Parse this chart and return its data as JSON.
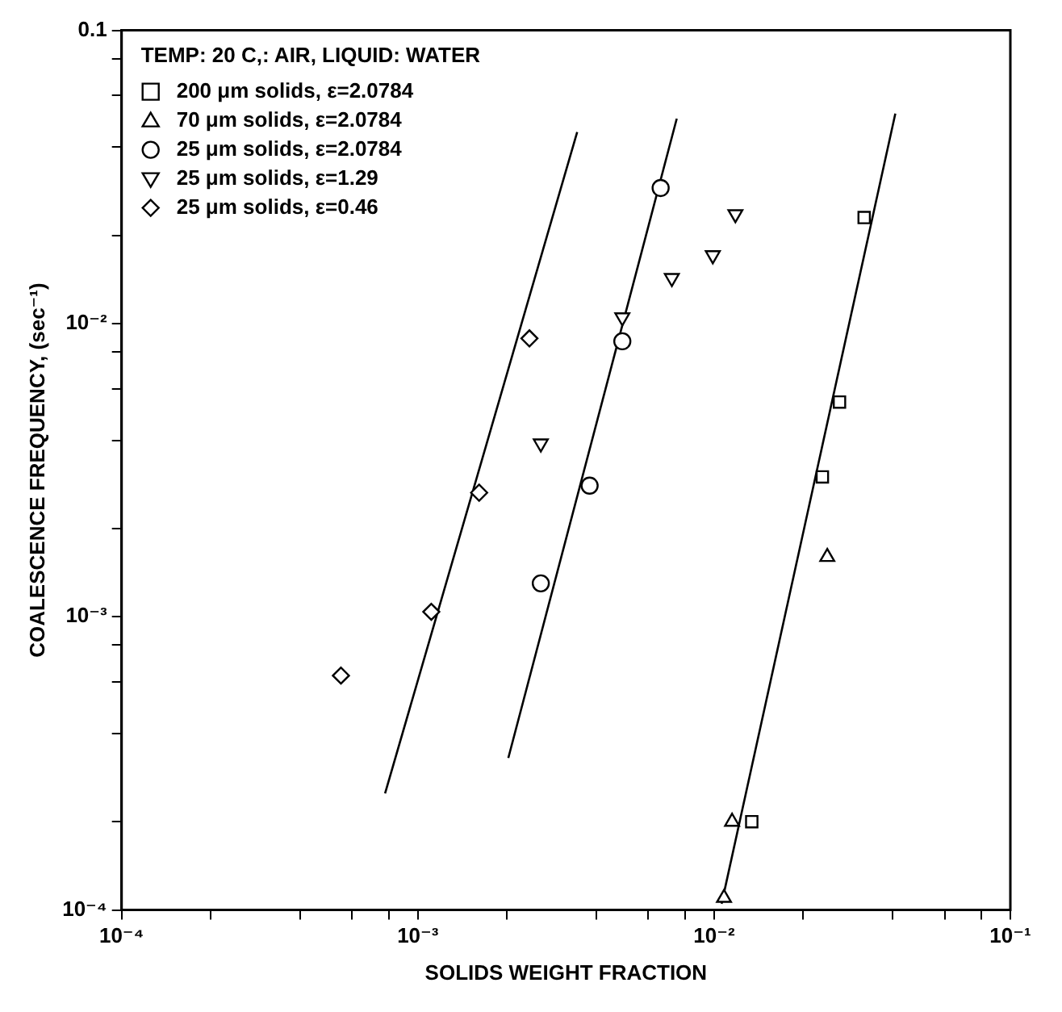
{
  "chart_data": {
    "type": "scatter",
    "xlabel": "SOLIDS WEIGHT FRACTION",
    "ylabel": "COALESCENCE FREQUENCY, (sec⁻¹)",
    "legend_title": "TEMP: 20 C,: AIR, LIQUID: WATER",
    "log": "xy",
    "grid": false,
    "legend": "top left",
    "xlim": [
      0.0001,
      0.1
    ],
    "ylim": [
      0.0001,
      0.1
    ],
    "xticks": [
      {
        "value": 0.0001,
        "label": "10⁻⁴"
      },
      {
        "value": 0.0002,
        "label": null
      },
      {
        "value": 0.0004,
        "label": null
      },
      {
        "value": 0.0006,
        "label": null
      },
      {
        "value": 0.0008,
        "label": null
      },
      {
        "value": 0.001,
        "label": "10⁻³"
      },
      {
        "value": 0.002,
        "label": null
      },
      {
        "value": 0.004,
        "label": null
      },
      {
        "value": 0.006,
        "label": null
      },
      {
        "value": 0.008,
        "label": null
      },
      {
        "value": 0.01,
        "label": "10⁻²"
      },
      {
        "value": 0.02,
        "label": null
      },
      {
        "value": 0.04,
        "label": null
      },
      {
        "value": 0.06,
        "label": null
      },
      {
        "value": 0.08,
        "label": null
      },
      {
        "value": 0.1,
        "label": "10⁻¹"
      }
    ],
    "yticks": [
      {
        "value": 0.0001,
        "label": "10⁻⁴"
      },
      {
        "value": 0.0002,
        "label": null
      },
      {
        "value": 0.0004,
        "label": null
      },
      {
        "value": 0.0006,
        "label": null
      },
      {
        "value": 0.0008,
        "label": null
      },
      {
        "value": 0.001,
        "label": "10⁻³"
      },
      {
        "value": 0.002,
        "label": null
      },
      {
        "value": 0.004,
        "label": null
      },
      {
        "value": 0.006,
        "label": null
      },
      {
        "value": 0.008,
        "label": null
      },
      {
        "value": 0.01,
        "label": "10⁻²"
      },
      {
        "value": 0.02,
        "label": null
      },
      {
        "value": 0.04,
        "label": null
      },
      {
        "value": 0.06,
        "label": null
      },
      {
        "value": 0.08,
        "label": null
      },
      0.1
    ],
    "series": [
      {
        "name": "200 μm solids, ε=2.0784",
        "color": "#000000",
        "marker": "square",
        "x": [
          0.0134,
          0.0232,
          0.0265,
          0.0321
        ],
        "values": [
          0.0002,
          0.003,
          0.0054,
          0.023
        ]
      },
      {
        "name": "70 μm solids, ε=2.0784",
        "color": "#000000",
        "marker": "triangle",
        "x": [
          0.0108,
          0.0115,
          0.0241
        ],
        "values": [
          0.00011,
          0.0002,
          0.0016
        ]
      },
      {
        "name": "25 μm solids, ε=2.0784",
        "color": "#000000",
        "marker": "circle",
        "x": [
          0.0026,
          0.0038,
          0.0049,
          0.0066
        ],
        "values": [
          0.0013,
          0.0028,
          0.0087,
          0.029
        ]
      },
      {
        "name": "25 μm solids, ε=1.29",
        "color": "#000000",
        "marker": "triangle-down",
        "x": [
          0.0026,
          0.0049,
          0.0072,
          0.0099,
          0.0118
        ],
        "values": [
          0.0039,
          0.0105,
          0.0143,
          0.0171,
          0.0236
        ]
      },
      {
        "name": "25 μm solids, ε=0.46",
        "color": "#000000",
        "marker": "diamond",
        "x": [
          0.00055,
          0.00111,
          0.00161,
          0.00238
        ],
        "values": [
          0.00063,
          0.00104,
          0.00265,
          0.0089
        ]
      },
      {
        "type": "line",
        "color": "#000000",
        "marker": "none",
        "x": [
          0.000775,
          0.00345
        ],
        "values": [
          0.00025,
          0.045
        ]
      },
      {
        "type": "line",
        "color": "#000000",
        "marker": "none",
        "x": [
          0.00202,
          0.00748
        ],
        "values": [
          0.00033,
          0.05
        ]
      },
      {
        "type": "line",
        "color": "#000000",
        "marker": "none",
        "x": [
          0.0106,
          0.0409
        ],
        "values": [
          0.000105,
          0.052
        ]
      }
    ]
  }
}
